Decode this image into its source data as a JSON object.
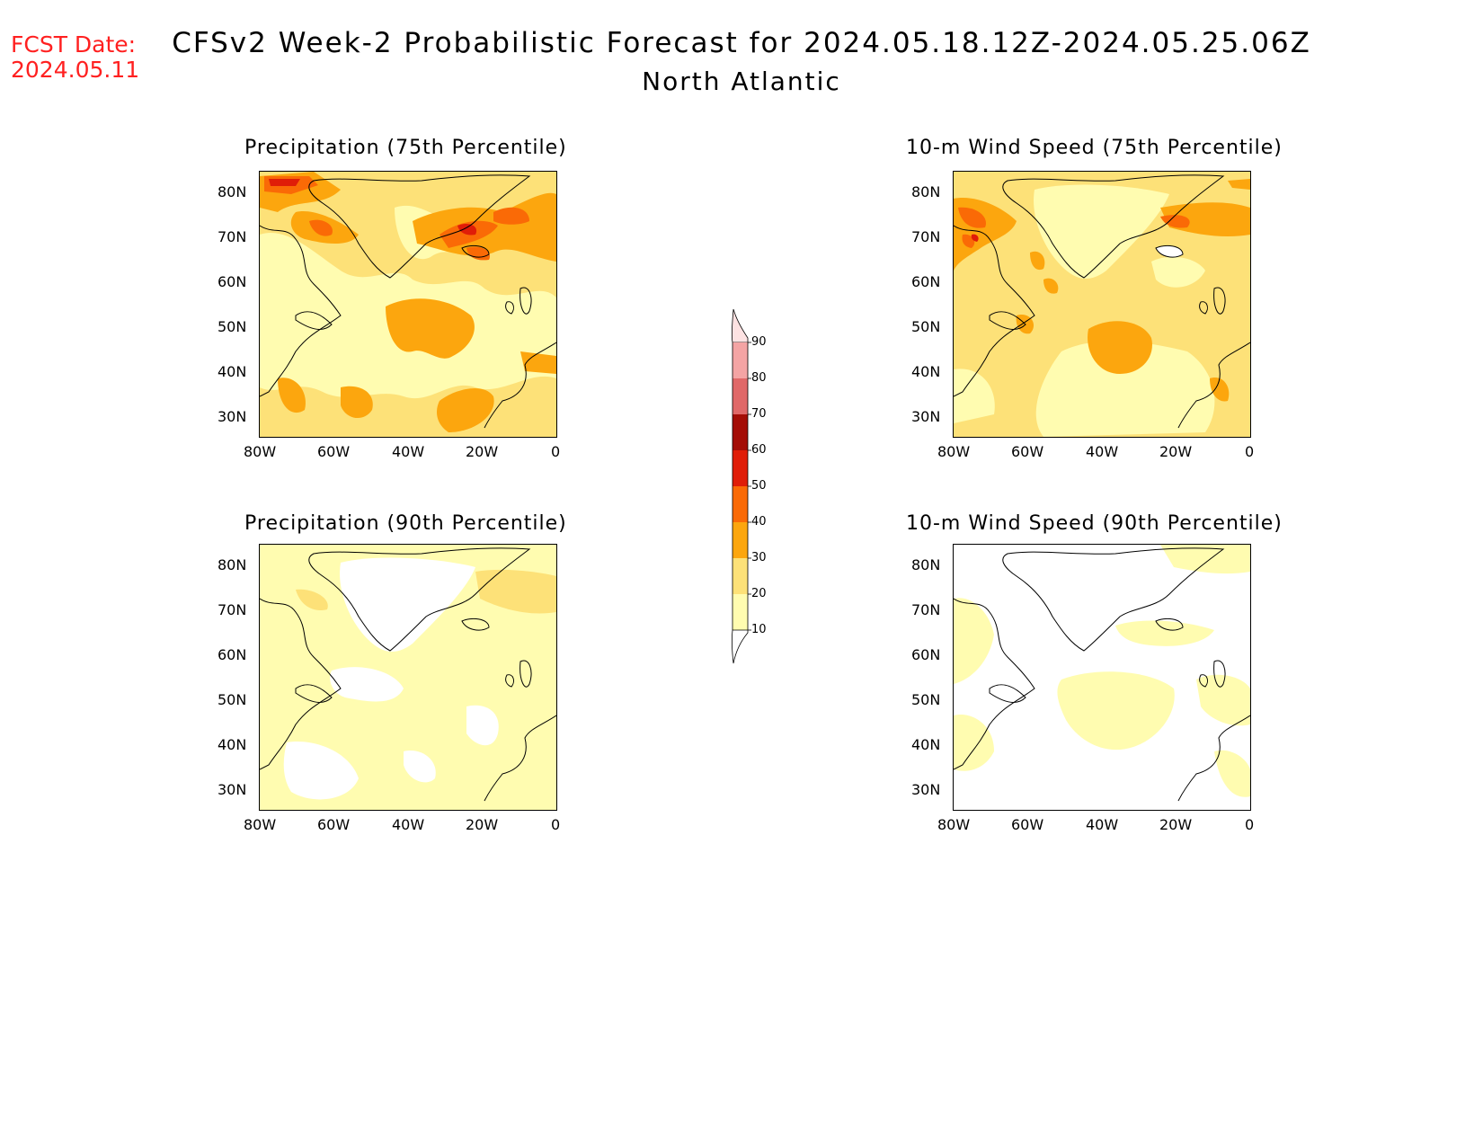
{
  "header": {
    "fcst_label": "FCST Date:",
    "fcst_date": "2024.05.11",
    "title": "CFSv2 Week-2 Probabilistic Forecast for 2024.05.18.12Z-2024.05.25.06Z",
    "subtitle": "North Atlantic"
  },
  "panels": [
    {
      "title": "Precipitation (75th Percentile)"
    },
    {
      "title": "10-m Wind Speed (75th Percentile)"
    },
    {
      "title": "Precipitation (90th Percentile)"
    },
    {
      "title": "10-m Wind Speed (90th Percentile)"
    }
  ],
  "axes": {
    "lat_ticks": [
      "80N",
      "70N",
      "60N",
      "50N",
      "40N",
      "30N"
    ],
    "lon_ticks": [
      "80W",
      "60W",
      "40W",
      "20W",
      "0"
    ]
  },
  "colorbar": {
    "levels": [
      "90",
      "80",
      "70",
      "60",
      "50",
      "40",
      "30",
      "20",
      "10"
    ],
    "colors": {
      "10-20": "#fffcb0",
      "20-30": "#fde178",
      "30-40": "#fca60e",
      "40-50": "#fa6a06",
      "50-60": "#e01d08",
      "60-70": "#a40d06",
      "70-80": "#e06868",
      "80-90": "#f4a4a4",
      "90+": "#fde2e2"
    }
  }
}
